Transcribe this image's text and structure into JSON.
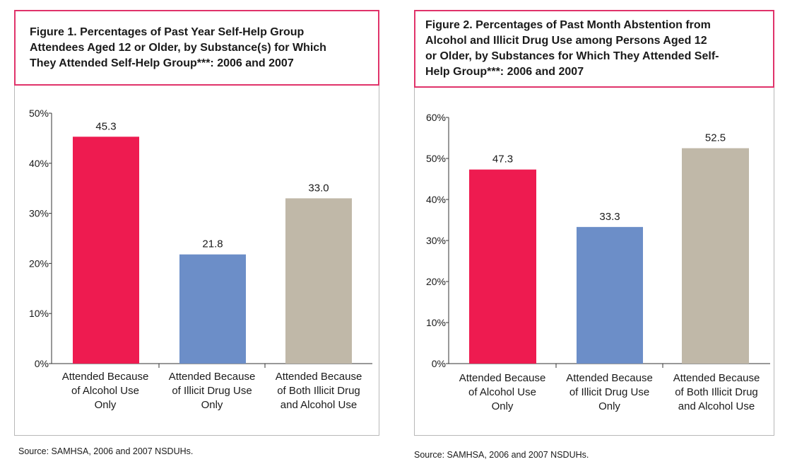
{
  "chart_data": [
    {
      "type": "bar",
      "title": "Figure 1. Percentages of Past Year Self-Help Group Attendees Aged 12 or Older, by Substance(s) for Which They Attended Self-Help Group***: 2006 and 2007",
      "title_lines": [
        "Figure 1. Percentages of Past Year Self-Help Group",
        "Attendees Aged 12 or Older, by Substance(s) for Which",
        "They Attended Self-Help Group***: 2006 and 2007"
      ],
      "categories": [
        [
          "Attended Because",
          "of Alcohol Use",
          "Only"
        ],
        [
          "Attended Because",
          "of Illicit Drug Use",
          "Only"
        ],
        [
          "Attended Because",
          "of Both Illicit Drug",
          "and Alcohol Use"
        ]
      ],
      "values": [
        45.3,
        21.8,
        33.0
      ],
      "value_labels": [
        "45.3",
        "21.8",
        "33.0"
      ],
      "colors": [
        "#ee1b50",
        "#6c8ec8",
        "#c0b8a8"
      ],
      "ylim": [
        0,
        50
      ],
      "yticks": [
        0,
        10,
        20,
        30,
        40,
        50
      ],
      "ytick_labels": [
        "0%",
        "10%",
        "20%",
        "30%",
        "40%",
        "50%"
      ],
      "xlabel": "",
      "ylabel": "",
      "grid": false,
      "source": "Source: SAMHSA, 2006 and 2007 NSDUHs."
    },
    {
      "type": "bar",
      "title": "Figure 2. Percentages of Past Month Abstention from Alcohol and Illicit Drug Use among Persons Aged 12 or Older, by Substances for Which They Attended Self-Help Group***: 2006 and 2007",
      "title_lines": [
        "Figure 2. Percentages of Past Month Abstention from",
        "Alcohol and Illicit Drug Use among Persons Aged 12",
        "or Older, by Substances for Which They Attended Self-",
        "Help Group***: 2006 and 2007"
      ],
      "categories": [
        [
          "Attended Because",
          "of Alcohol Use",
          "Only"
        ],
        [
          "Attended Because",
          "of Illicit Drug Use",
          "Only"
        ],
        [
          "Attended Because",
          "of Both Illicit Drug",
          "and Alcohol Use"
        ]
      ],
      "values": [
        47.3,
        33.3,
        52.5
      ],
      "value_labels": [
        "47.3",
        "33.3",
        "52.5"
      ],
      "colors": [
        "#ee1b50",
        "#6c8ec8",
        "#c0b8a8"
      ],
      "ylim": [
        0,
        60
      ],
      "yticks": [
        0,
        10,
        20,
        30,
        40,
        50,
        60
      ],
      "ytick_labels": [
        "0%",
        "10%",
        "20%",
        "30%",
        "40%",
        "50%",
        "60%"
      ],
      "xlabel": "",
      "ylabel": "",
      "grid": false,
      "source": "Source: SAMHSA, 2006 and 2007 NSDUHs."
    }
  ]
}
